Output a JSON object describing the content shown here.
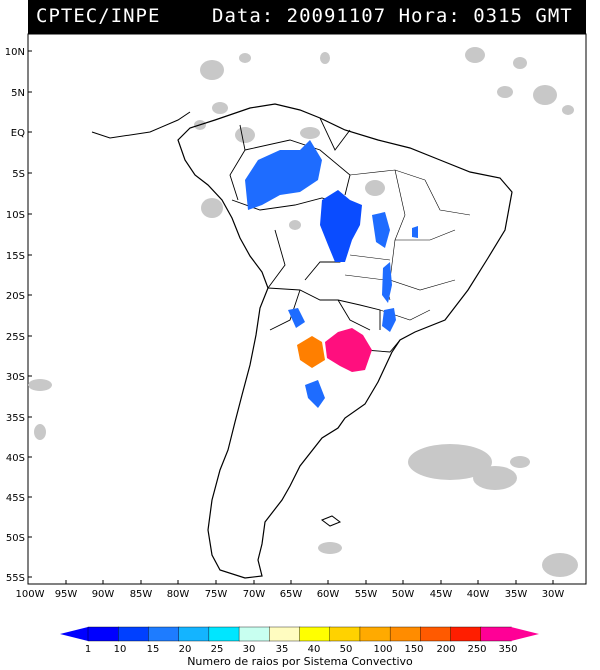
{
  "header": {
    "source": "CPTEC/INPE",
    "datetime": "Data: 20091107 Hora: 0315 GMT"
  },
  "axes": {
    "lat_labels": [
      "10N",
      "5N",
      "EQ",
      "5S",
      "10S",
      "15S",
      "20S",
      "25S",
      "30S",
      "35S",
      "40S",
      "45S",
      "50S",
      "55S"
    ],
    "lon_labels": [
      "100W",
      "95W",
      "90W",
      "85W",
      "80W",
      "75W",
      "70W",
      "65W",
      "60W",
      "55W",
      "50W",
      "45W",
      "40W",
      "35W",
      "30W"
    ]
  },
  "legend": {
    "title": "Numero de raios por Sistema Convectivo",
    "ticks": [
      "1",
      "10",
      "15",
      "20",
      "25",
      "30",
      "35",
      "40",
      "50",
      "100",
      "150",
      "200",
      "250",
      "350"
    ],
    "colors": [
      "#0000ff",
      "#0040ff",
      "#1e7cff",
      "#14b4ff",
      "#00e6ff",
      "#c8fff0",
      "#fffcc0",
      "#ffff00",
      "#ffd200",
      "#ffaa00",
      "#ff8c00",
      "#ff5a00",
      "#ff1e00",
      "#ff0096"
    ]
  },
  "colors": {
    "cloud": "#c8c8c8",
    "land_outline": "#000000",
    "flash_low": "#1e6cff",
    "flash_mid": "#ff7f00",
    "flash_high": "#ff0f7e"
  }
}
